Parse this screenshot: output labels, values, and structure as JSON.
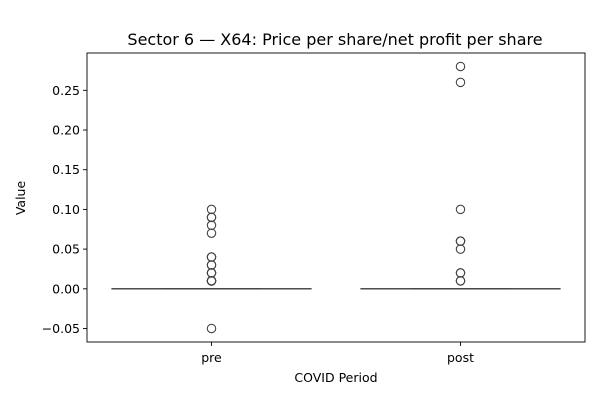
{
  "chart_data": {
    "type": "box",
    "title": "Sector 6 — X64: Price per share/net profit per share",
    "xlabel": "COVID Period",
    "ylabel": "Value",
    "categories": [
      "pre",
      "post"
    ],
    "ylim": [
      -0.067,
      0.297
    ],
    "yticks": [
      -0.05,
      0.0,
      0.05,
      0.1,
      0.15,
      0.2,
      0.25
    ],
    "ytick_labels": [
      "−0.05",
      "0.00",
      "0.05",
      "0.10",
      "0.15",
      "0.20",
      "0.25"
    ],
    "grid": false,
    "legend": "none",
    "box_color": "#444444",
    "boxes": [
      {
        "category": "pre",
        "q1": 0.0,
        "median": 0.0,
        "q3": 0.0,
        "whisker_low": 0.0,
        "whisker_high": 0.0,
        "outliers": [
          0.1,
          0.09,
          0.09,
          0.08,
          0.07,
          0.04,
          0.04,
          0.03,
          0.03,
          0.02,
          0.02,
          0.02,
          0.01,
          0.01,
          0.01,
          0.01,
          0.01,
          -0.05
        ]
      },
      {
        "category": "post",
        "q1": 0.0,
        "median": 0.0,
        "q3": 0.0,
        "whisker_low": 0.0,
        "whisker_high": 0.0,
        "outliers": [
          0.28,
          0.26,
          0.1,
          0.06,
          0.06,
          0.05,
          0.02,
          0.02,
          0.01,
          0.01
        ]
      }
    ]
  }
}
